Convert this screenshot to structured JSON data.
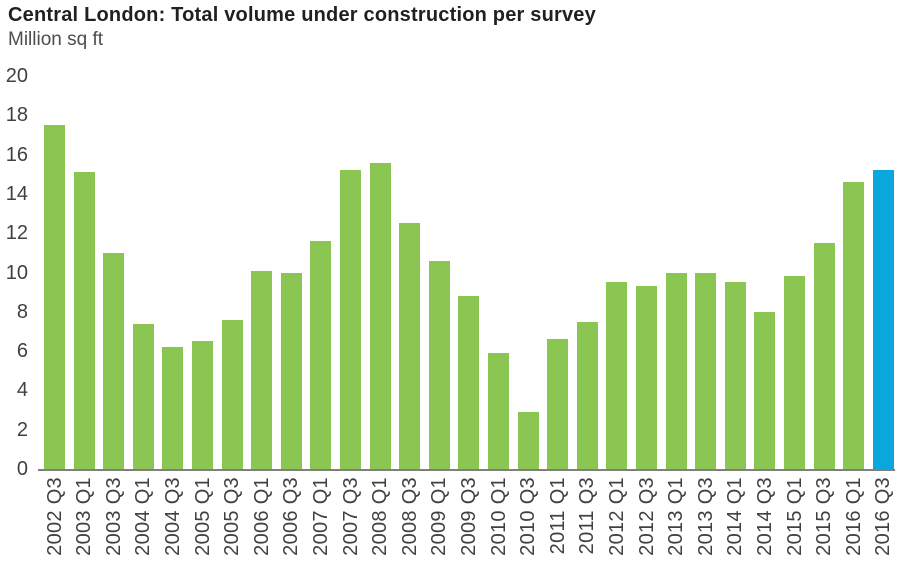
{
  "chart_data": {
    "type": "bar",
    "title": "Central London: Total volume under construction per survey",
    "subtitle": "Million sq ft",
    "ylabel": "Million sq ft",
    "categories": [
      "2002 Q3",
      "2003 Q1",
      "2003 Q3",
      "2004 Q1",
      "2004 Q3",
      "2005 Q1",
      "2005 Q3",
      "2006 Q1",
      "2006 Q3",
      "2007 Q1",
      "2007 Q3",
      "2008 Q1",
      "2008 Q3",
      "2009 Q1",
      "2009 Q3",
      "2010 Q1",
      "2010 Q3",
      "2011 Q1",
      "2011 Q3",
      "2012 Q1",
      "2012 Q3",
      "2013 Q1",
      "2013 Q3",
      "2014 Q1",
      "2014 Q3",
      "2015 Q1",
      "2015 Q3",
      "2016 Q1",
      "2016 Q3"
    ],
    "values": [
      17.5,
      15.1,
      11.0,
      7.4,
      6.2,
      6.5,
      7.6,
      10.1,
      10.0,
      11.6,
      15.2,
      15.6,
      12.5,
      10.6,
      8.8,
      5.9,
      2.9,
      6.6,
      7.5,
      9.5,
      9.3,
      10.0,
      10.0,
      9.5,
      8.0,
      9.8,
      11.5,
      14.6,
      15.2
    ],
    "ylim": [
      0,
      20
    ],
    "y_ticks": [
      0,
      2,
      4,
      6,
      8,
      10,
      12,
      14,
      16,
      18,
      20
    ],
    "grid": false,
    "legend": "none",
    "x_tick_rotation": 90,
    "bar_color": "#8cc652",
    "highlight_color": "#0aa7dd",
    "highlight_index": 28,
    "highlight_category": "2016 Q3",
    "axis_line_color": "#7f7f7f",
    "tick_text_color": "#414042",
    "title_color": "#231f20",
    "subtitle_color": "#4d4d4d"
  }
}
